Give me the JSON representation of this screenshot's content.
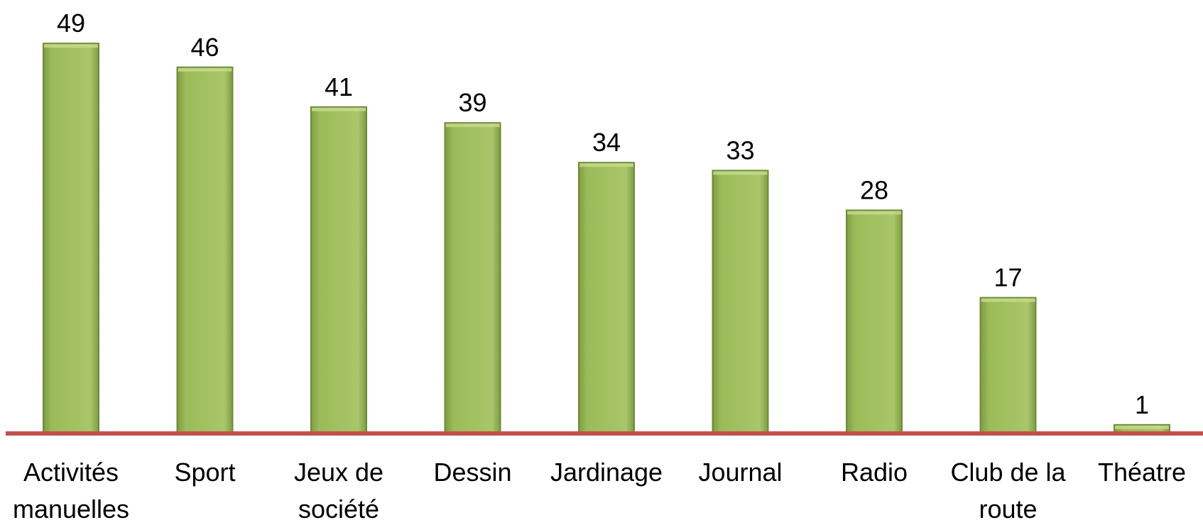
{
  "chart_data": {
    "type": "bar",
    "categories": [
      "Activités manuelles",
      "Sport",
      "Jeux de société",
      "Dessin",
      "Jardinage",
      "Journal",
      "Radio",
      "Club de la route",
      "Théatre"
    ],
    "values": [
      49,
      46,
      41,
      39,
      34,
      33,
      28,
      17,
      1
    ],
    "color": "#9bbb59",
    "axis_color": "#c0504d",
    "ylim": [
      0,
      50
    ]
  }
}
